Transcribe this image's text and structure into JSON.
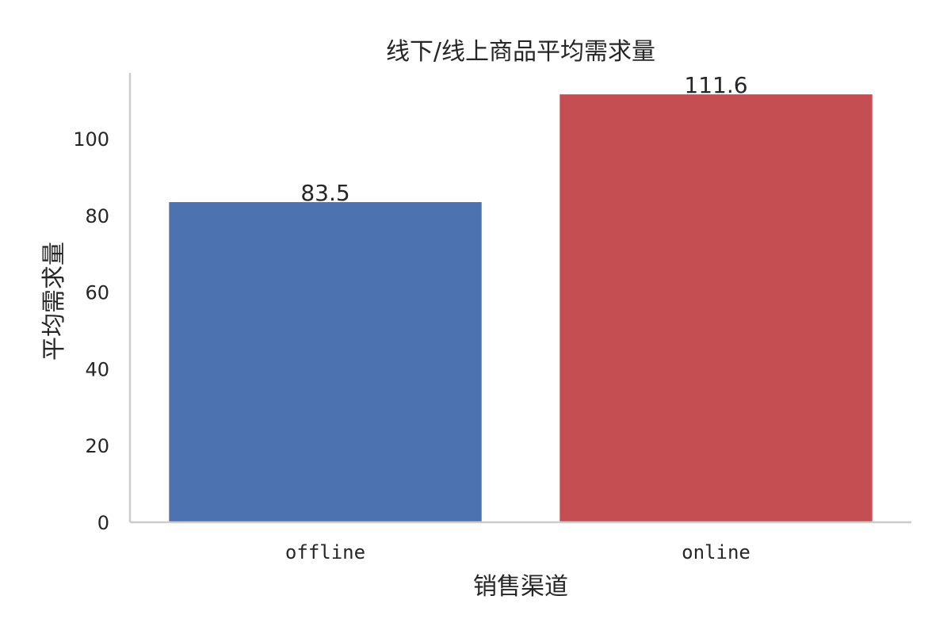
{
  "chart_data": {
    "type": "bar",
    "title": "线下/线上商品平均需求量",
    "xlabel": "销售渠道",
    "ylabel": "平均需求量",
    "categories": [
      "offline",
      "online"
    ],
    "values": [
      83.5,
      111.6
    ],
    "data_labels": [
      "83.5",
      "111.6"
    ],
    "colors": [
      "#4c72b0",
      "#c44e52"
    ],
    "ylim": [
      0,
      117.2
    ],
    "yticks": [
      0,
      20,
      40,
      60,
      80,
      100
    ],
    "ytick_labels": [
      "0",
      "20",
      "40",
      "60",
      "80",
      "100"
    ],
    "grid": false,
    "legend": "none"
  }
}
